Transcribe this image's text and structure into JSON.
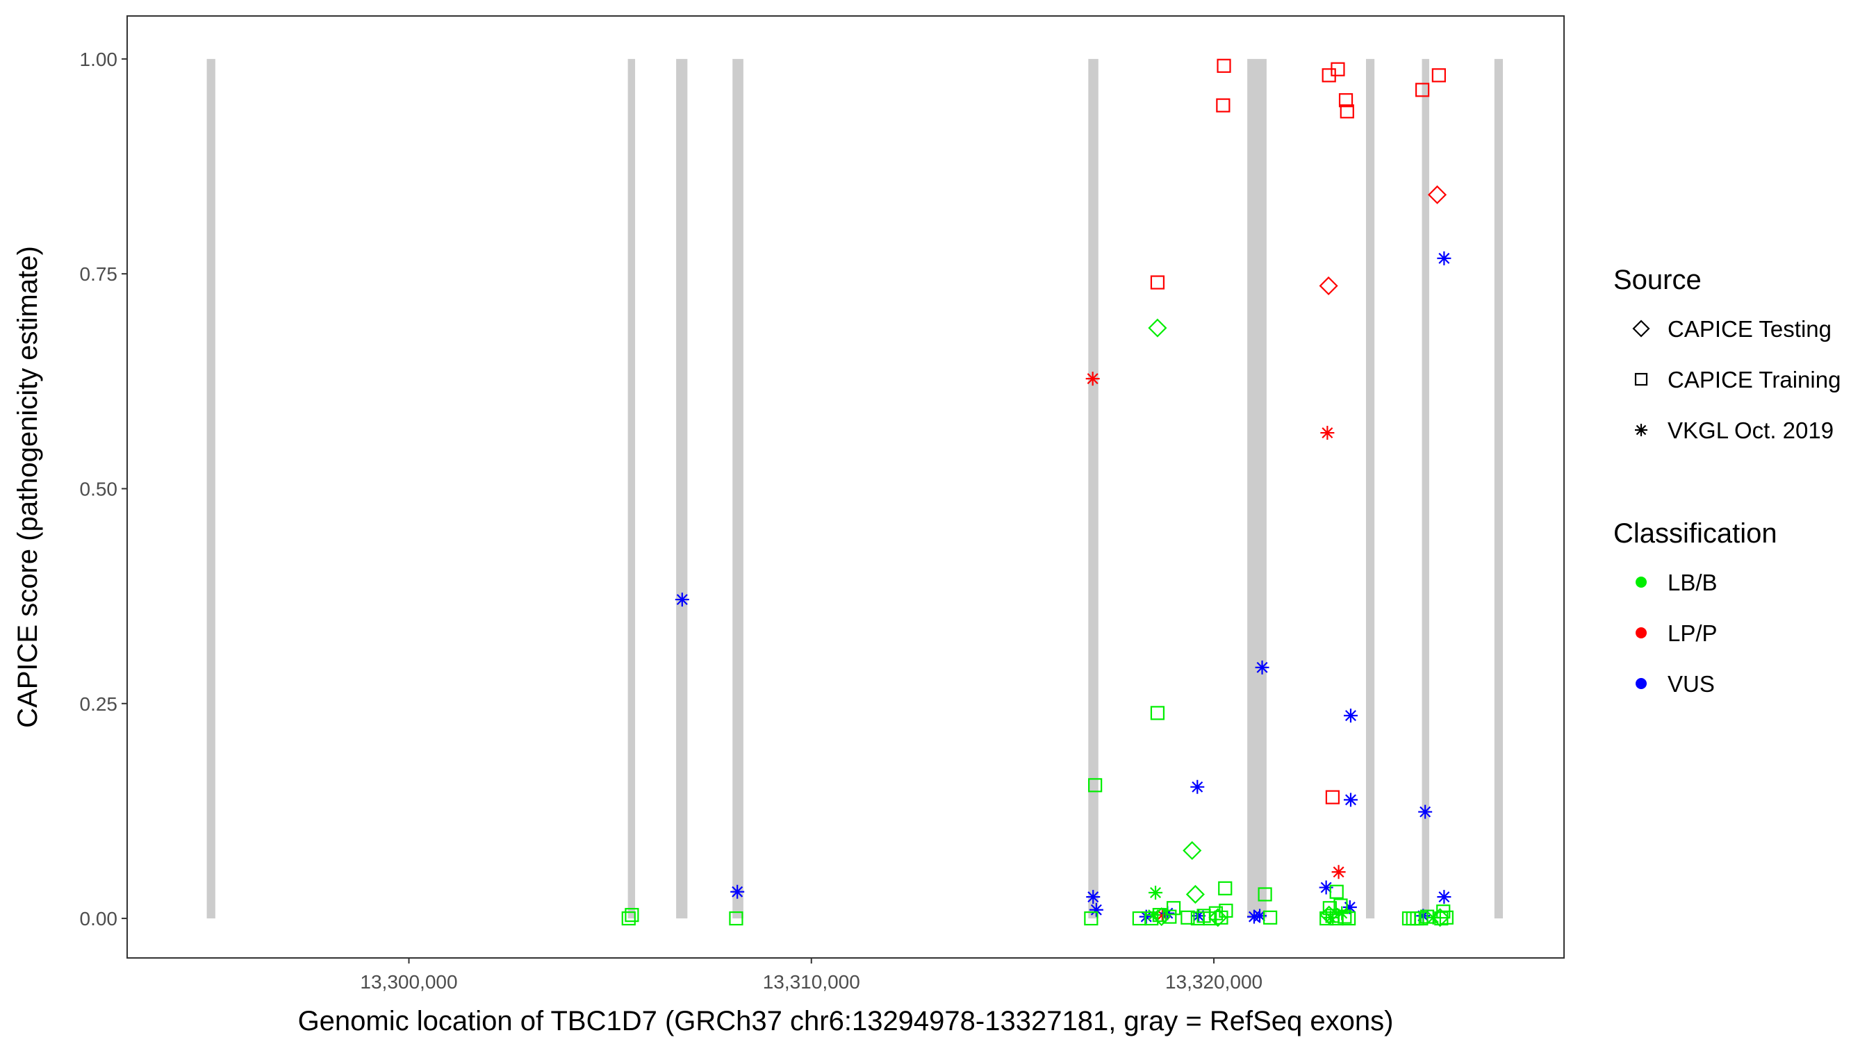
{
  "chart_data": {
    "type": "scatter",
    "title": "",
    "xlabel": "Genomic location of TBC1D7 (GRCh37 chr6:13294978-13327181, gray = RefSeq exons)",
    "ylabel": "CAPICE score (pathogenicity estimate)",
    "xlim": [
      13293000,
      13328700
    ],
    "ylim": [
      -0.046,
      1.05
    ],
    "x_ticks": [
      13300000,
      13310000,
      13320000
    ],
    "x_tick_labels": [
      "13,300,000",
      "13,310,000",
      "13,320,000"
    ],
    "y_ticks": [
      0.0,
      0.25,
      0.5,
      0.75,
      1.0
    ],
    "y_tick_labels": [
      "0.00",
      "0.25",
      "0.50",
      "0.75",
      "1.00"
    ],
    "grid": false,
    "legend_position": "right",
    "exon_color": "#cccccc",
    "exons": [
      [
        13294978,
        13295190
      ],
      [
        13305440,
        13305620
      ],
      [
        13306640,
        13306920
      ],
      [
        13308040,
        13308310
      ],
      [
        13316880,
        13317130
      ],
      [
        13320830,
        13321310
      ],
      [
        13323780,
        13323990
      ],
      [
        13325170,
        13325350
      ],
      [
        13326970,
        13327181
      ]
    ],
    "legend": {
      "source_title": "Source",
      "sources": [
        {
          "key": "testing",
          "label": "CAPICE Testing",
          "marker": "diamond"
        },
        {
          "key": "training",
          "label": "CAPICE Training",
          "marker": "square"
        },
        {
          "key": "vkgl",
          "label": "VKGL Oct. 2019",
          "marker": "asterisk"
        }
      ],
      "class_title": "Classification",
      "classes": [
        {
          "key": "lbb",
          "label": "LB/B",
          "color": "#00ee00"
        },
        {
          "key": "lpp",
          "label": "LP/P",
          "color": "#ff0000"
        },
        {
          "key": "vus",
          "label": "VUS",
          "color": "#0000ff"
        }
      ]
    },
    "series": [
      {
        "source": "training",
        "class": "lpp",
        "points": [
          [
            13320250,
            0.992
          ],
          [
            13320230,
            0.946
          ],
          [
            13318600,
            0.74
          ],
          [
            13322860,
            0.981
          ],
          [
            13323080,
            0.988
          ],
          [
            13323280,
            0.952
          ],
          [
            13323310,
            0.939
          ],
          [
            13325180,
            0.964
          ],
          [
            13325590,
            0.981
          ],
          [
            13322950,
            0.141
          ]
        ]
      },
      {
        "source": "testing",
        "class": "lpp",
        "points": [
          [
            13322850,
            0.736
          ],
          [
            13325550,
            0.842
          ]
        ]
      },
      {
        "source": "vkgl",
        "class": "lpp",
        "points": [
          [
            13316990,
            0.628
          ],
          [
            13322820,
            0.565
          ],
          [
            13323100,
            0.054
          ],
          [
            13318720,
            0.004
          ]
        ]
      },
      {
        "source": "vkgl",
        "class": "vus",
        "points": [
          [
            13306790,
            0.371
          ],
          [
            13308160,
            0.031
          ],
          [
            13321200,
            0.292
          ],
          [
            13319590,
            0.153
          ],
          [
            13323400,
            0.236
          ],
          [
            13323400,
            0.138
          ],
          [
            13325250,
            0.124
          ],
          [
            13325720,
            0.768
          ],
          [
            13325720,
            0.025
          ],
          [
            13317000,
            0.025
          ],
          [
            13317080,
            0.01
          ],
          [
            13318850,
            0.006
          ],
          [
            13319620,
            0.003
          ],
          [
            13321000,
            0.002
          ],
          [
            13321140,
            0.003
          ],
          [
            13322790,
            0.036
          ],
          [
            13323380,
            0.013
          ],
          [
            13325200,
            0.003
          ],
          [
            13318320,
            0.002
          ]
        ]
      },
      {
        "source": "training",
        "class": "lbb",
        "points": [
          [
            13318600,
            0.239
          ],
          [
            13317050,
            0.155
          ],
          [
            13320280,
            0.035
          ],
          [
            13321270,
            0.028
          ],
          [
            13323050,
            0.031
          ],
          [
            13305460,
            0.0
          ],
          [
            13305540,
            0.004
          ],
          [
            13308130,
            0.0
          ],
          [
            13316950,
            0.0
          ],
          [
            13318150,
            0.0
          ],
          [
            13318450,
            0.0
          ],
          [
            13318650,
            0.004
          ],
          [
            13318900,
            0.002
          ],
          [
            13319000,
            0.012
          ],
          [
            13319350,
            0.001
          ],
          [
            13319600,
            0.0
          ],
          [
            13319750,
            0.003
          ],
          [
            13319900,
            0.0
          ],
          [
            13320050,
            0.006
          ],
          [
            13320180,
            0.001
          ],
          [
            13320300,
            0.009
          ],
          [
            13321400,
            0.001
          ],
          [
            13322800,
            0.0
          ],
          [
            13322880,
            0.012
          ],
          [
            13322950,
            0.003
          ],
          [
            13323050,
            0.0
          ],
          [
            13323150,
            0.015
          ],
          [
            13323250,
            0.002
          ],
          [
            13323350,
            0.0
          ],
          [
            13324850,
            0.0
          ],
          [
            13324950,
            0.0
          ],
          [
            13325050,
            0.0
          ],
          [
            13325150,
            0.0
          ],
          [
            13325300,
            0.002
          ],
          [
            13325650,
            0.0
          ],
          [
            13325700,
            0.008
          ],
          [
            13325780,
            0.001
          ]
        ]
      },
      {
        "source": "testing",
        "class": "lbb",
        "points": [
          [
            13318600,
            0.687
          ],
          [
            13319460,
            0.079
          ],
          [
            13319540,
            0.028
          ],
          [
            13318700,
            0.002
          ],
          [
            13320100,
            0.001
          ],
          [
            13322860,
            0.004
          ],
          [
            13325620,
            0.001
          ]
        ]
      },
      {
        "source": "vkgl",
        "class": "lbb",
        "points": [
          [
            13318550,
            0.03
          ],
          [
            13318500,
            0.004
          ],
          [
            13322900,
            0.001
          ],
          [
            13323180,
            0.006
          ],
          [
            13325450,
            0.001
          ]
        ]
      }
    ]
  }
}
